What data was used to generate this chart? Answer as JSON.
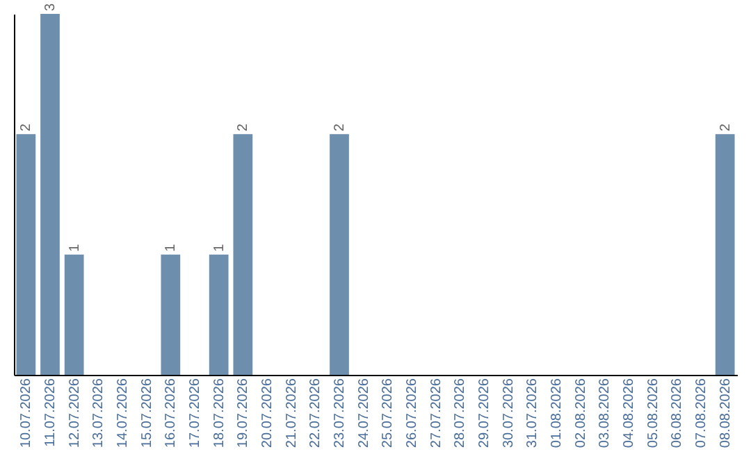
{
  "chart_data": {
    "type": "bar",
    "categories": [
      "10.07.2026",
      "11.07.2026",
      "12.07.2026",
      "13.07.2026",
      "14.07.2026",
      "15.07.2026",
      "16.07.2026",
      "17.07.2026",
      "18.07.2026",
      "19.07.2026",
      "20.07.2026",
      "21.07.2026",
      "22.07.2026",
      "23.07.2026",
      "24.07.2026",
      "25.07.2026",
      "26.07.2026",
      "27.07.2026",
      "28.07.2026",
      "29.07.2026",
      "30.07.2026",
      "31.07.2026",
      "01.08.2026",
      "02.08.2026",
      "03.08.2026",
      "04.08.2026",
      "05.08.2026",
      "06.08.2026",
      "07.08.2026",
      "08.08.2026"
    ],
    "values": [
      2,
      3,
      1,
      0,
      0,
      0,
      1,
      0,
      1,
      2,
      0,
      0,
      0,
      2,
      0,
      0,
      0,
      0,
      0,
      0,
      0,
      0,
      0,
      0,
      0,
      0,
      0,
      0,
      0,
      2
    ],
    "value_labels": [
      "2",
      "3",
      "1",
      null,
      null,
      null,
      "1",
      null,
      "1",
      "2",
      null,
      null,
      null,
      "2",
      null,
      null,
      null,
      null,
      null,
      null,
      null,
      null,
      null,
      null,
      null,
      null,
      null,
      null,
      null,
      "2"
    ],
    "color": "#6d8eac",
    "ylim": [
      0,
      3
    ],
    "tick_labels": "x",
    "grid": false
  }
}
